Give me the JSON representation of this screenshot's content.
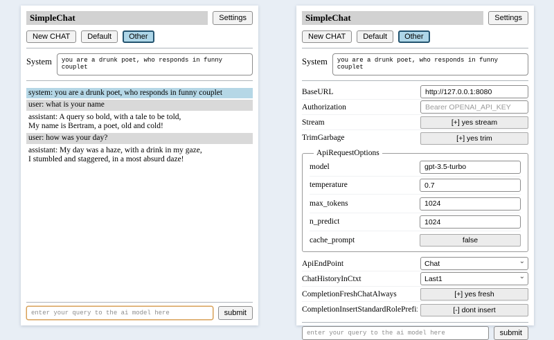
{
  "colors": {
    "page_bg": "#e8eef5",
    "titlebar_bg": "#d2d2d2",
    "active_tab_bg": "#aed6e8",
    "active_tab_border": "#23536f",
    "system_msg_bg": "#b5d7e6",
    "user_msg_bg": "#d9d9d9",
    "query_focus_border": "#d8a158"
  },
  "header": {
    "title": "SimpleChat",
    "settings_button": "Settings"
  },
  "toolbar": {
    "new_chat_button": "New CHAT",
    "chat_tabs": [
      {
        "label": "Default",
        "active": false
      },
      {
        "label": "Other",
        "active": true
      }
    ]
  },
  "system_prompt": {
    "label": "System",
    "value": "you are a drunk poet, who responds in funny couplet"
  },
  "chat": {
    "messages": [
      {
        "role": "system",
        "text": "system: you are a drunk poet, who responds in funny couplet"
      },
      {
        "role": "user",
        "text": "user: what is your name"
      },
      {
        "role": "assistant",
        "text": "assistant: A query so bold, with a tale to be told,\nMy name is Bertram, a poet, old and cold!"
      },
      {
        "role": "user",
        "text": "user: how was your day?"
      },
      {
        "role": "assistant",
        "text": "assistant: My day was a haze, with a drink in my gaze,\nI stumbled and staggered, in a most absurd daze!"
      }
    ]
  },
  "query": {
    "placeholder": "enter your query to the ai model here",
    "submit_button": "submit"
  },
  "settings": {
    "base_url": {
      "label": "BaseURL",
      "value": "http://127.0.0.1:8080"
    },
    "authorization": {
      "label": "Authorization",
      "placeholder": "Bearer OPENAI_API_KEY"
    },
    "stream": {
      "label": "Stream",
      "button": "[+] yes stream"
    },
    "trim_garbage": {
      "label": "TrimGarbage",
      "button": "[+] yes trim"
    },
    "api_request_options": {
      "legend": "ApiRequestOptions",
      "model": {
        "label": "model",
        "value": "gpt-3.5-turbo"
      },
      "temperature": {
        "label": "temperature",
        "value": "0.7"
      },
      "max_tokens": {
        "label": "max_tokens",
        "value": "1024"
      },
      "n_predict": {
        "label": "n_predict",
        "value": "1024"
      },
      "cache_prompt": {
        "label": "cache_prompt",
        "button": "false"
      }
    },
    "api_endpoint": {
      "label": "ApiEndPoint",
      "selected": "Chat"
    },
    "chat_history_in_ctxt": {
      "label": "ChatHistoryInCtxt",
      "selected": "Last1"
    },
    "completion_fresh_chat_always": {
      "label": "CompletionFreshChatAlways",
      "button": "[+] yes fresh"
    },
    "completion_insert_standard_role_prefix": {
      "label": "CompletionInsertStandardRolePrefix",
      "button": "[-] dont insert"
    }
  }
}
